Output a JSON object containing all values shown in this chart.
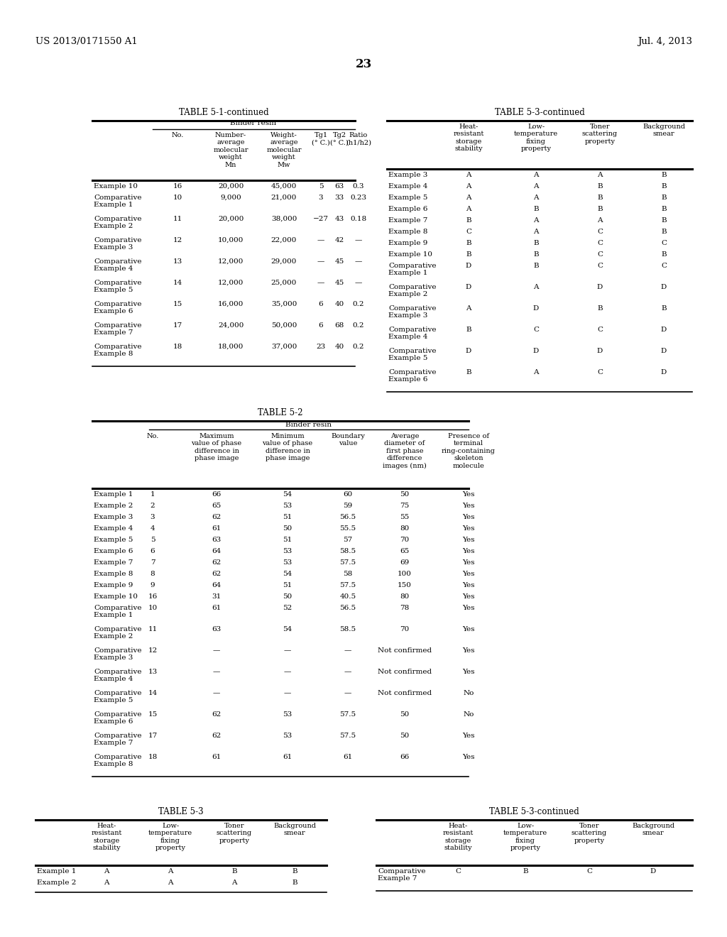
{
  "page_header_left": "US 2013/0171550 A1",
  "page_header_right": "Jul. 4, 2013",
  "page_number": "23",
  "table51_title": "TABLE 5-1-continued",
  "table51_binder_label": "Binder resin",
  "table51_col_headers": [
    "",
    "No.",
    "Number-\naverage\nmolecular\nweight\nMn",
    "Weight-\naverage\nmolecular\nweight\nMw",
    "Tg1\n(° C.)",
    "Tg2\n(° C.)",
    "Ratio\n(h1/h2)"
  ],
  "table51_rows": [
    [
      "Example 10",
      "16",
      "20,000",
      "45,000",
      "5",
      "63",
      "0.3"
    ],
    [
      "Comparative\nExample 1",
      "10",
      "9,000",
      "21,000",
      "3",
      "33",
      "0.23"
    ],
    [
      "Comparative\nExample 2",
      "11",
      "20,000",
      "38,000",
      "−27",
      "43",
      "0.18"
    ],
    [
      "Comparative\nExample 3",
      "12",
      "10,000",
      "22,000",
      "—",
      "42",
      "—"
    ],
    [
      "Comparative\nExample 4",
      "13",
      "12,000",
      "29,000",
      "—",
      "45",
      "—"
    ],
    [
      "Comparative\nExample 5",
      "14",
      "12,000",
      "25,000",
      "—",
      "45",
      "—"
    ],
    [
      "Comparative\nExample 6",
      "15",
      "16,000",
      "35,000",
      "6",
      "40",
      "0.2"
    ],
    [
      "Comparative\nExample 7",
      "17",
      "24,000",
      "50,000",
      "6",
      "68",
      "0.2"
    ],
    [
      "Comparative\nExample 8",
      "18",
      "18,000",
      "37,000",
      "23",
      "40",
      "0.2"
    ]
  ],
  "table53top_title": "TABLE 5-3-continued",
  "table53top_col_headers": [
    "",
    "Heat-\nresistant\nstorage\nstability",
    "Low-\ntemperature\nfixing\nproperty",
    "Toner\nscattering\nproperty",
    "Background\nsmear"
  ],
  "table53top_rows": [
    [
      "Example 3",
      "A",
      "A",
      "A",
      "B"
    ],
    [
      "Example 4",
      "A",
      "A",
      "B",
      "B"
    ],
    [
      "Example 5",
      "A",
      "A",
      "B",
      "B"
    ],
    [
      "Example 6",
      "A",
      "B",
      "B",
      "B"
    ],
    [
      "Example 7",
      "B",
      "A",
      "A",
      "B"
    ],
    [
      "Example 8",
      "C",
      "A",
      "C",
      "B"
    ],
    [
      "Example 9",
      "B",
      "B",
      "C",
      "C"
    ],
    [
      "Example 10",
      "B",
      "B",
      "C",
      "B"
    ],
    [
      "Comparative\nExample 1",
      "D",
      "B",
      "C",
      "C"
    ],
    [
      "Comparative\nExample 2",
      "D",
      "A",
      "D",
      "D"
    ],
    [
      "Comparative\nExample 3",
      "A",
      "D",
      "B",
      "B"
    ],
    [
      "Comparative\nExample 4",
      "B",
      "C",
      "C",
      "D"
    ],
    [
      "Comparative\nExample 5",
      "D",
      "D",
      "D",
      "D"
    ],
    [
      "Comparative\nExample 6",
      "B",
      "A",
      "C",
      "D"
    ]
  ],
  "table52_title": "TABLE 5-2",
  "table52_binder_label": "Binder resin",
  "table52_col_headers": [
    "",
    "No.",
    "Maximum\nvalue of phase\ndifference in\nphase image",
    "Minimum\nvalue of phase\ndifference in\nphase image",
    "Boundary\nvalue",
    "Average\ndiameter of\nfirst phase\ndifference\nimages (nm)",
    "Presence of\nterminal\nring-containing\nskeleton\nmolecule"
  ],
  "table52_rows": [
    [
      "Example 1",
      "1",
      "66",
      "54",
      "60",
      "50",
      "Yes"
    ],
    [
      "Example 2",
      "2",
      "65",
      "53",
      "59",
      "75",
      "Yes"
    ],
    [
      "Example 3",
      "3",
      "62",
      "51",
      "56.5",
      "55",
      "Yes"
    ],
    [
      "Example 4",
      "4",
      "61",
      "50",
      "55.5",
      "80",
      "Yes"
    ],
    [
      "Example 5",
      "5",
      "63",
      "51",
      "57",
      "70",
      "Yes"
    ],
    [
      "Example 6",
      "6",
      "64",
      "53",
      "58.5",
      "65",
      "Yes"
    ],
    [
      "Example 7",
      "7",
      "62",
      "53",
      "57.5",
      "69",
      "Yes"
    ],
    [
      "Example 8",
      "8",
      "62",
      "54",
      "58",
      "100",
      "Yes"
    ],
    [
      "Example 9",
      "9",
      "64",
      "51",
      "57.5",
      "150",
      "Yes"
    ],
    [
      "Example 10",
      "16",
      "31",
      "50",
      "40.5",
      "80",
      "Yes"
    ],
    [
      "Comparative\nExample 1",
      "10",
      "61",
      "52",
      "56.5",
      "78",
      "Yes"
    ],
    [
      "Comparative\nExample 2",
      "11",
      "63",
      "54",
      "58.5",
      "70",
      "Yes"
    ],
    [
      "Comparative\nExample 3",
      "12",
      "—",
      "—",
      "—",
      "Not confirmed",
      "Yes"
    ],
    [
      "Comparative\nExample 4",
      "13",
      "—",
      "—",
      "—",
      "Not confirmed",
      "Yes"
    ],
    [
      "Comparative\nExample 5",
      "14",
      "—",
      "—",
      "—",
      "Not confirmed",
      "No"
    ],
    [
      "Comparative\nExample 6",
      "15",
      "62",
      "53",
      "57.5",
      "50",
      "No"
    ],
    [
      "Comparative\nExample 7",
      "17",
      "62",
      "53",
      "57.5",
      "50",
      "Yes"
    ],
    [
      "Comparative\nExample 8",
      "18",
      "61",
      "61",
      "61",
      "66",
      "Yes"
    ]
  ],
  "table53bot_title": "TABLE 5-3",
  "table53bot_col_headers": [
    "",
    "Heat-\nresistant\nstorage\nstability",
    "Low-\ntemperature\nfixing\nproperty",
    "Toner\nscattering\nproperty",
    "Background\nsmear"
  ],
  "table53bot_rows": [
    [
      "Example 1",
      "A",
      "A",
      "B",
      "B"
    ],
    [
      "Example 2",
      "A",
      "A",
      "A",
      "B"
    ]
  ],
  "table53botR_title": "TABLE 5-3-continued",
  "table53botR_col_headers": [
    "",
    "Heat-\nresistant\nstorage\nstability",
    "Low-\ntemperature\nfixing\nproperty",
    "Toner\nscattering\nproperty",
    "Background\nsmear"
  ],
  "table53botR_rows": [
    [
      "Comparative\nExample 7",
      "C",
      "B",
      "C",
      "D"
    ]
  ]
}
